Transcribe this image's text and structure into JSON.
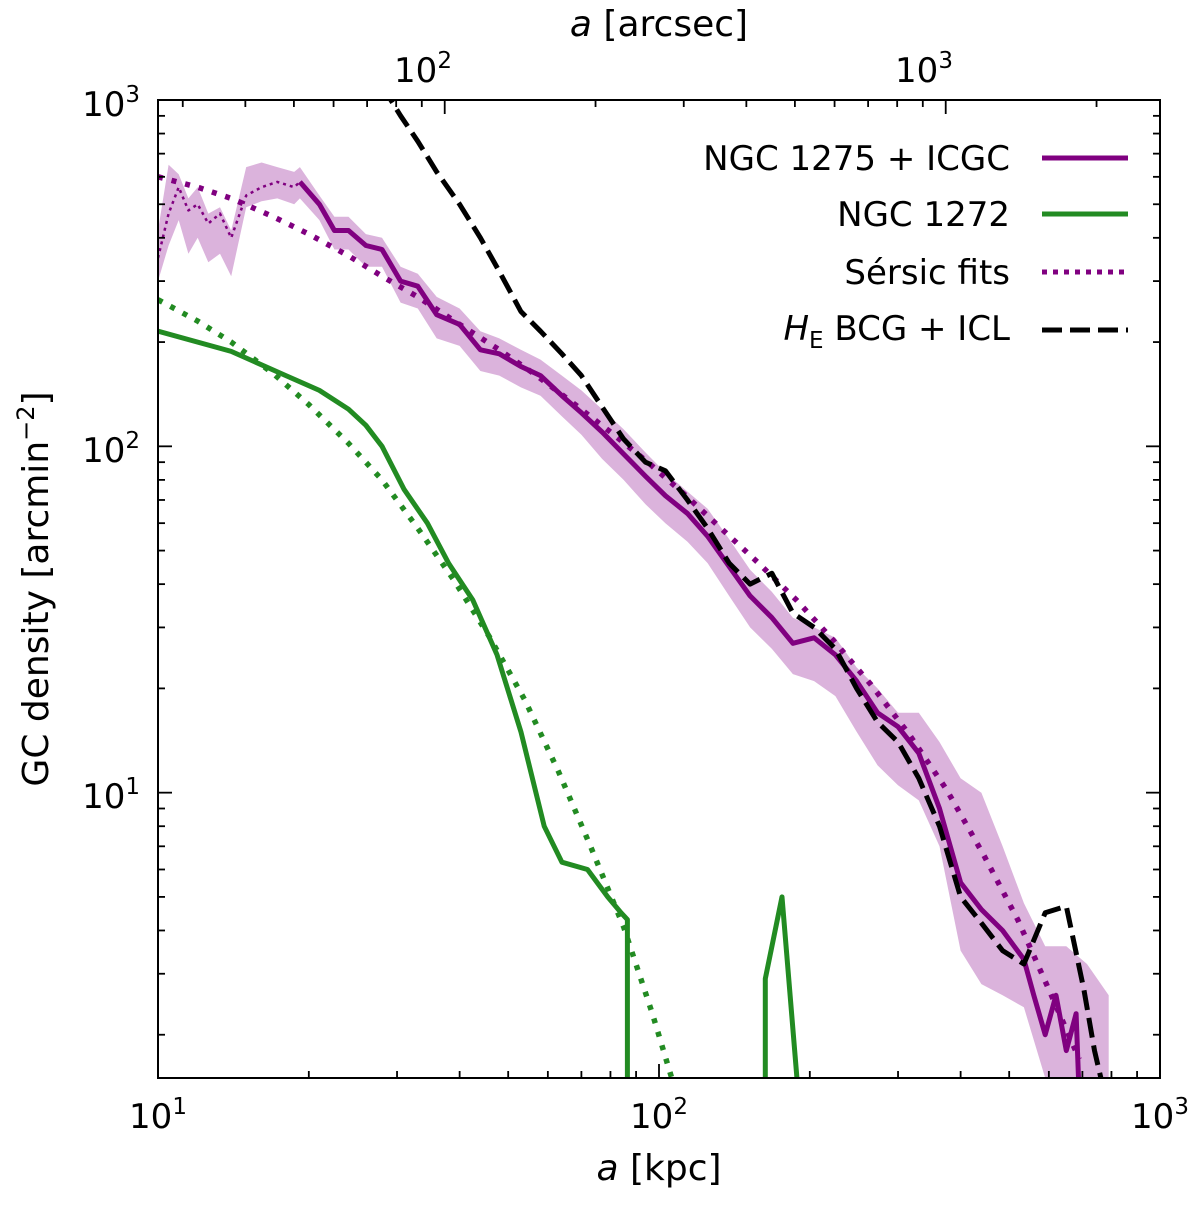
{
  "chart_data": {
    "type": "line",
    "xscale": "log",
    "yscale": "log",
    "xlim": [
      10,
      1000
    ],
    "ylim": [
      1.5,
      1000
    ],
    "xlabel_italic": "a",
    "xlabel_rest": " [kpc]",
    "ylabel_main": "GC density [arcmin",
    "ylabel_sup": "−2",
    "ylabel_close": "]",
    "top_axis": {
      "label_italic": "a",
      "label_rest": " [arcsec]",
      "kpc_per_arcsec": 0.3735,
      "ticks": [
        {
          "value": 100,
          "base": "10",
          "exp": "2"
        },
        {
          "value": 1000,
          "base": "10",
          "exp": "3"
        }
      ]
    },
    "x_ticks": [
      {
        "value": 10,
        "base": "10",
        "exp": "1"
      },
      {
        "value": 100,
        "base": "10",
        "exp": "2"
      },
      {
        "value": 1000,
        "base": "10",
        "exp": "3"
      }
    ],
    "y_ticks": [
      {
        "value": 10,
        "base": "10",
        "exp": "1"
      },
      {
        "value": 100,
        "base": "10",
        "exp": "2"
      },
      {
        "value": 1000,
        "base": "10",
        "exp": "3"
      }
    ],
    "band": {
      "name": "NGC 1275 + ICGC uncertainty",
      "color": "#dbb3dc",
      "x": [
        10.0,
        10.5,
        11.0,
        11.5,
        12.0,
        12.6,
        13.3,
        14.0,
        15.0,
        16.1,
        17.3,
        18.7,
        19.2,
        21.0,
        22.5,
        24.0,
        26.0,
        28.0,
        30.5,
        33.0,
        36.0,
        40.0,
        44.0,
        48.0,
        53.0,
        58.0,
        64.0,
        70.0,
        77.0,
        85.0,
        94.0,
        103.0,
        114.0,
        125.0,
        138.0,
        152.0,
        168.0,
        185.0,
        204.0,
        225.0,
        248.0,
        273.0,
        300.0,
        330.0,
        363.0,
        400.0,
        440.0,
        485.0,
        535.0,
        590.0,
        650.0,
        715.0,
        790.0
      ],
      "low": [
        300,
        380,
        450,
        360,
        400,
        340,
        360,
        310,
        490,
        510,
        520,
        500,
        520,
        450,
        370,
        370,
        330,
        330,
        260,
        250,
        205,
        195,
        165,
        160,
        148,
        140,
        122,
        108,
        92,
        80,
        68,
        60,
        53,
        46,
        37,
        30,
        26,
        22,
        21,
        19,
        15,
        12,
        10.5,
        9.5,
        7.0,
        3.5,
        2.8,
        2.6,
        2.4,
        1.5,
        1.5,
        1.5,
        1.5
      ],
      "high": [
        420,
        650,
        610,
        520,
        560,
        470,
        490,
        420,
        640,
        660,
        640,
        620,
        640,
        530,
        460,
        460,
        410,
        400,
        330,
        315,
        270,
        250,
        215,
        205,
        190,
        178,
        160,
        145,
        128,
        112,
        96,
        84,
        74,
        66,
        54,
        44,
        38,
        32,
        30,
        28,
        23,
        20,
        17.0,
        17.0,
        14.0,
        11.0,
        10.0,
        7.0,
        4.8,
        3.6,
        3.6,
        3.2,
        2.6
      ]
    },
    "series": [
      {
        "name": "NGC 1275 inner (thin dotted)",
        "color": "#800080",
        "style": "thin-dotted",
        "x": [
          10.0,
          10.5,
          11.0,
          11.5,
          12.0,
          12.6,
          13.3,
          14.0,
          15.0,
          16.1,
          17.3,
          18.7,
          19.2
        ],
        "y": [
          350,
          470,
          560,
          480,
          500,
          440,
          470,
          400,
          530,
          560,
          580,
          560,
          580
        ]
      },
      {
        "name": "NGC 1275 + ICGC",
        "color": "#800080",
        "style": "solid",
        "x": [
          19.2,
          21.0,
          22.5,
          24.0,
          26.0,
          28.0,
          30.5,
          33.0,
          36.0,
          40.0,
          44.0,
          48.0,
          53.0,
          58.0,
          64.0,
          70.0,
          77.0,
          85.0,
          94.0,
          103.0,
          114.0,
          125.0,
          138.0,
          152.0,
          168.0,
          185.0,
          204.0,
          225.0,
          248.0,
          273.0,
          300.0,
          330.0,
          363.0,
          400.0,
          440.0,
          485.0,
          535.0,
          560.0,
          590.0,
          620.0,
          650.0,
          680.0,
          690.0
        ],
        "y": [
          580,
          500,
          420,
          420,
          380,
          370,
          300,
          290,
          240,
          225,
          190,
          185,
          170,
          160,
          140,
          125,
          110,
          95,
          82,
          72,
          64,
          55,
          45,
          37,
          32,
          27,
          28,
          25,
          21,
          17,
          15.5,
          13.0,
          9.0,
          5.5,
          4.6,
          4.0,
          3.3,
          2.6,
          2.0,
          2.6,
          1.8,
          2.3,
          1.3
        ]
      },
      {
        "name": "NGC 1272",
        "color": "#228b22",
        "style": "solid",
        "x": [
          10.0,
          14.0,
          18.0,
          21.0,
          24.0,
          26.0,
          28.0,
          31.0,
          34.5,
          38.0,
          42.5,
          47.5,
          53.0,
          59.0,
          64.0,
          72.0,
          79.0,
          84.0,
          86.5,
          86.5
        ],
        "y": [
          215,
          188,
          160,
          145,
          128,
          115,
          100,
          75,
          60,
          46,
          36,
          25,
          15.0,
          8.0,
          6.3,
          6.0,
          5.0,
          4.5,
          4.3,
          1.3
        ]
      },
      {
        "name": "NGC 1272 (outer spike)",
        "color": "#228b22",
        "style": "solid",
        "x": [
          163.0,
          163.0,
          176.0,
          190.0
        ],
        "y": [
          1.3,
          2.9,
          5.0,
          1.3
        ]
      },
      {
        "name": "Sérsic fits (NGC 1275 + ICGC)",
        "color": "#800080",
        "style": "dotted",
        "x": [
          10.0,
          12.0,
          14.0,
          17.0,
          20.0,
          24.0,
          28.0,
          33.0,
          40.0,
          48.0,
          57.0,
          68.0,
          80.0,
          95.0,
          112.0,
          133.0,
          158.0,
          188.0,
          223.0,
          265.0,
          315.0,
          375.0,
          445.0,
          520.0,
          600.0,
          690.0
        ],
        "y": [
          600,
          560,
          520,
          460,
          410,
          355,
          310,
          270,
          225,
          190,
          160,
          132,
          110,
          90,
          73,
          58,
          46,
          36,
          27.5,
          20.5,
          14.8,
          10.2,
          6.6,
          4.3,
          2.7,
          1.7
        ]
      },
      {
        "name": "Sérsic fits (NGC 1272)",
        "color": "#228b22",
        "style": "dotted",
        "x": [
          10.0,
          12.0,
          14.0,
          17.0,
          20.0,
          24.0,
          28.0,
          33.0,
          39.0,
          46.0,
          54.0,
          63.0,
          73.0,
          85.0,
          97.0,
          106.0
        ],
        "y": [
          265,
          230,
          200,
          162,
          132,
          102,
          80,
          58,
          41,
          28,
          18.5,
          11.5,
          7.0,
          4.1,
          2.3,
          1.5
        ]
      },
      {
        "name": "H_E BCG + ICL",
        "color": "#000000",
        "style": "dashed",
        "x": [
          28.0,
          30.5,
          33.0,
          36.0,
          40.0,
          44.0,
          48.0,
          53.0,
          58.0,
          64.0,
          70.0,
          77.0,
          85.0,
          94.0,
          103.0,
          114.0,
          125.0,
          138.0,
          152.0,
          168.0,
          185.0,
          204.0,
          225.0,
          248.0,
          273.0,
          300.0,
          330.0,
          363.0,
          400.0,
          440.0,
          485.0,
          535.0,
          590.0,
          650.0,
          705.0,
          740.0,
          780.0
        ],
        "y": [
          1100,
          900,
          760,
          620,
          500,
          400,
          320,
          245,
          215,
          185,
          160,
          130,
          105,
          90,
          85,
          70,
          58,
          46,
          40,
          43,
          33,
          30,
          26,
          20,
          16,
          14.0,
          11.0,
          8.0,
          5.0,
          4.2,
          3.5,
          3.2,
          4.5,
          4.7,
          2.7,
          1.8,
          1.3
        ]
      }
    ],
    "legend": {
      "position": "top-right",
      "entries": [
        {
          "label": "NGC 1275  +  ICGC",
          "color": "#800080",
          "style": "solid"
        },
        {
          "label": "NGC 1272",
          "color": "#228b22",
          "style": "solid"
        },
        {
          "label": "Sérsic fits",
          "color": "#800080",
          "style": "dotted"
        },
        {
          "label_italic": "H",
          "label_sub": "E",
          "label_rest": " BCG + ICL",
          "color": "#000000",
          "style": "dashed"
        }
      ]
    }
  }
}
